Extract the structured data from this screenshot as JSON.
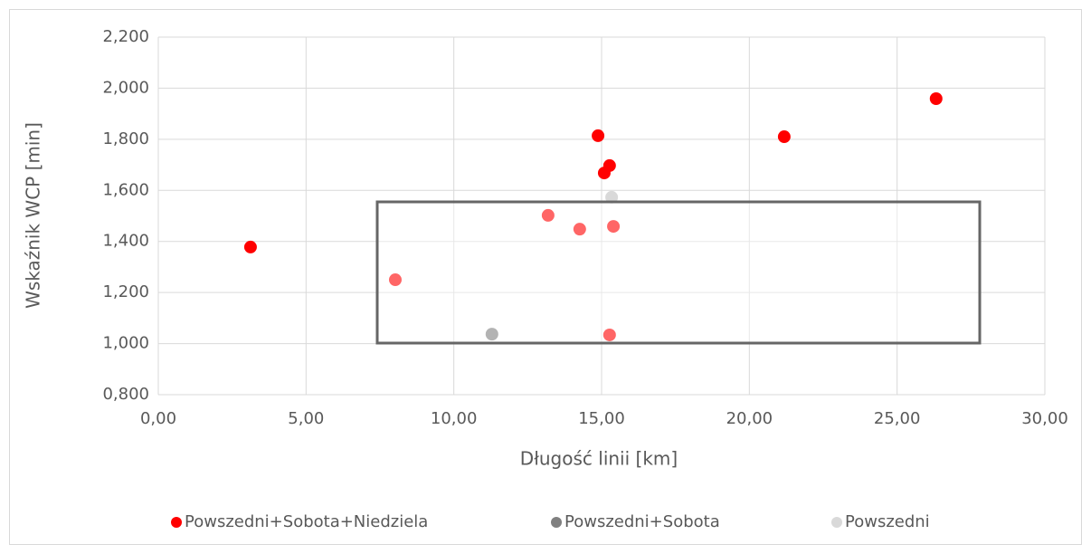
{
  "chart_data": {
    "type": "scatter",
    "xlabel": "Długość linii [km]",
    "ylabel": "Wskaźnik WCP [min]",
    "xlim": [
      0,
      30
    ],
    "xticks": [
      {
        "value": 0,
        "label": "0,00"
      },
      {
        "value": 5,
        "label": "5,00"
      },
      {
        "value": 10,
        "label": "10,00"
      },
      {
        "value": 15,
        "label": "15,00"
      },
      {
        "value": 20,
        "label": "20,00"
      },
      {
        "value": 25,
        "label": "25,00"
      },
      {
        "value": 30,
        "label": "30,00"
      }
    ],
    "ylim": [
      0.8,
      2.2
    ],
    "yticks": [
      {
        "value": 0.8,
        "label": "0,800"
      },
      {
        "value": 1.0,
        "label": "1,000"
      },
      {
        "value": 1.2,
        "label": "1,200"
      },
      {
        "value": 1.4,
        "label": "1,400"
      },
      {
        "value": 1.6,
        "label": "1,600"
      },
      {
        "value": 1.8,
        "label": "1,800"
      },
      {
        "value": 2.0,
        "label": "2,000"
      },
      {
        "value": 2.2,
        "label": "2,200"
      }
    ],
    "grid": true,
    "legend": "bottom",
    "series": [
      {
        "name": "Powszedni+Sobota+Niedziela",
        "color": "#ff0000",
        "x": [
          3.12,
          8.02,
          13.19,
          14.26,
          14.88,
          15.09,
          15.27,
          15.4,
          15.27,
          21.18,
          26.32
        ],
        "values": [
          1.378,
          1.25,
          1.502,
          1.448,
          1.814,
          1.668,
          1.697,
          1.459,
          1.034,
          1.81,
          1.959
        ]
      },
      {
        "name": "Powszedni+Sobota",
        "color": "#808080",
        "x": [
          11.29
        ],
        "values": [
          1.037
        ]
      },
      {
        "name": "Powszedni",
        "color": "#d9d9d9",
        "x": [
          15.34
        ],
        "values": [
          1.573
        ]
      }
    ]
  }
}
